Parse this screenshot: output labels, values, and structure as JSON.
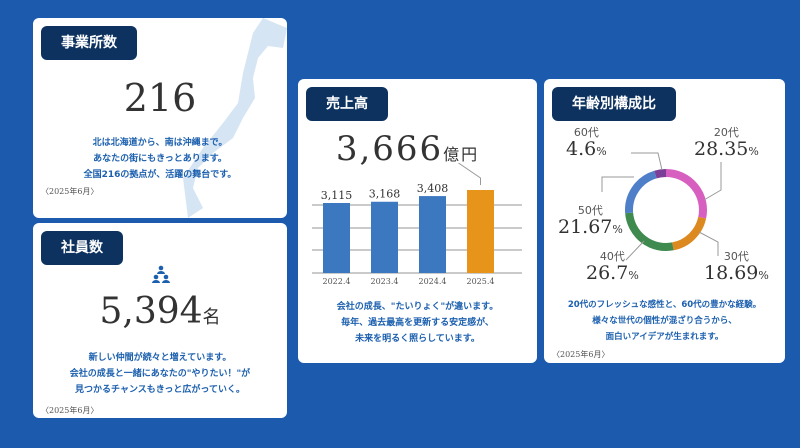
{
  "offices": {
    "title": "事業所数",
    "value": "216",
    "lines": [
      "北は北海道から、南は沖縄まで。",
      "あなたの街にもきっとあります。",
      "全国216の拠点が、活躍の舞台です。"
    ],
    "date": "〈2025年6月〉"
  },
  "employees": {
    "title": "社員数",
    "value": "5,394",
    "unit": "名",
    "icon": "people-group-icon",
    "lines": [
      "新しい仲間が続々と増えています。",
      "会社の成長と一緒にあなたの\"やりたい！\"が",
      "見つかるチャンスもきっと広がっていく。"
    ],
    "date": "〈2025年6月〉"
  },
  "sales": {
    "title": "売上高",
    "value": "3,666",
    "unit": "億円",
    "lines": [
      "会社の成長、\"たいりょく\"が違います。",
      "毎年、過去最高を更新する安定感が、",
      "未来を明るく照らしています。"
    ]
  },
  "age": {
    "title": "年齢別構成比",
    "lines": [
      "20代のフレッシュな感性と、60代の豊かな経験。",
      "様々な世代の個性が混ざり合うから、",
      "面白いアイデアが生まれます。"
    ],
    "date": "〈2025年6月〉"
  },
  "chart_data": [
    {
      "type": "bar",
      "categories": [
        "2022.4",
        "2023.4",
        "2024.4",
        "2025.4"
      ],
      "values": [
        3115,
        3168,
        3408,
        3666
      ],
      "labels": [
        "3,115",
        "3,168",
        "3,408"
      ],
      "colors": [
        "#3b78c0",
        "#3b78c0",
        "#3b78c0",
        "#e6941a"
      ]
    },
    {
      "type": "pie",
      "categories": [
        "20代",
        "30代",
        "40代",
        "50代",
        "60代"
      ],
      "values": [
        28.35,
        18.69,
        26.7,
        21.67,
        4.6
      ],
      "labels": [
        "28.35",
        "18.69",
        "26.7",
        "21.67",
        "4.6"
      ],
      "pct": "%",
      "colors": [
        "#d65fbf",
        "#dc8a1f",
        "#3f8a4e",
        "#4f7fc9",
        "#7c3f97"
      ]
    }
  ]
}
